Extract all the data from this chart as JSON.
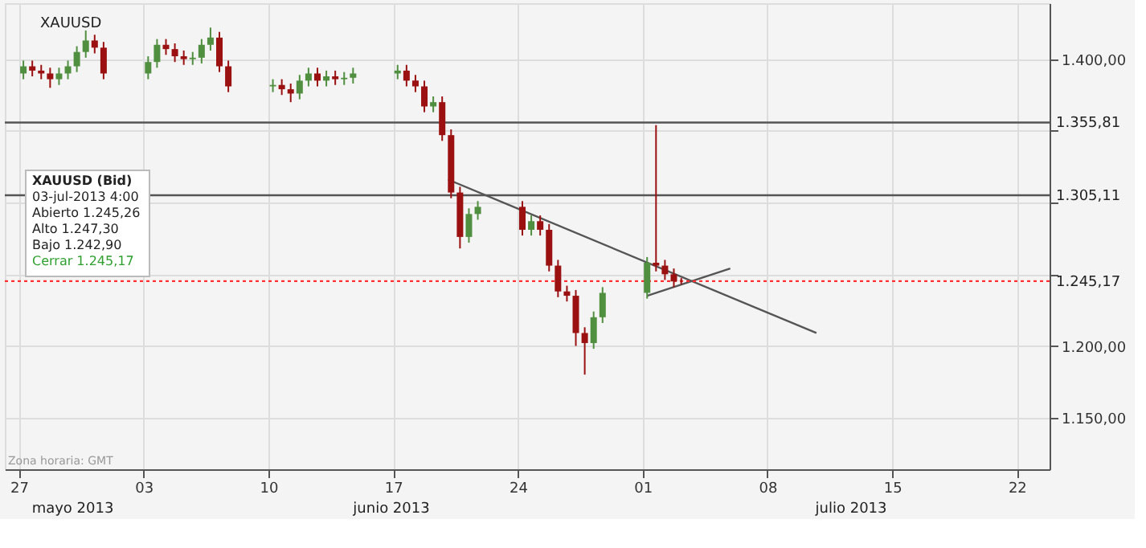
{
  "chart_data": {
    "type": "candlestick",
    "title": "XAUUSD",
    "annotations": [
      "XAUUSD (Bid)",
      "03-jul-2013 4:00",
      "Abierto 1.245,26",
      "Alto 1.247,30",
      "Bajo 1.242,90",
      "Cerrar 1.245,17",
      "Zona horaria: GMT",
      "mayo 2013",
      "junio 2013",
      "julio 2013"
    ],
    "x": [
      "2013-05-27T06:00",
      "2013-05-27T18:00",
      "2013-05-28T06:00",
      "2013-05-28T18:00",
      "2013-05-29T06:00",
      "2013-05-29T18:00",
      "2013-05-30T06:00",
      "2013-05-30T18:00",
      "2013-05-31T06:00",
      "2013-05-31T18:00",
      "2013-06-03T06:00",
      "2013-06-03T18:00",
      "2013-06-04T06:00",
      "2013-06-04T18:00",
      "2013-06-05T06:00",
      "2013-06-05T18:00",
      "2013-06-06T06:00",
      "2013-06-06T18:00",
      "2013-06-07T06:00",
      "2013-06-07T18:00",
      "2013-06-10T06:00",
      "2013-06-10T18:00",
      "2013-06-11T06:00",
      "2013-06-11T18:00",
      "2013-06-12T06:00",
      "2013-06-12T18:00",
      "2013-06-13T06:00",
      "2013-06-13T18:00",
      "2013-06-14T06:00",
      "2013-06-14T18:00",
      "2013-06-17T06:00",
      "2013-06-17T18:00",
      "2013-06-18T06:00",
      "2013-06-18T18:00",
      "2013-06-19T06:00",
      "2013-06-19T18:00",
      "2013-06-20T06:00",
      "2013-06-20T18:00",
      "2013-06-21T06:00",
      "2013-06-21T18:00",
      "2013-06-24T06:00",
      "2013-06-24T18:00",
      "2013-06-25T06:00",
      "2013-06-25T18:00",
      "2013-06-26T06:00",
      "2013-06-26T18:00",
      "2013-06-27T06:00",
      "2013-06-27T18:00",
      "2013-06-28T06:00",
      "2013-06-28T18:00",
      "2013-07-01T06:00",
      "2013-07-01T18:00",
      "2013-07-02T06:00",
      "2013-07-02T18:00",
      "2013-07-03T04:00"
    ],
    "ohlc": [
      [
        1390,
        1399,
        1386,
        1395
      ],
      [
        1395,
        1399,
        1388,
        1392
      ],
      [
        1392,
        1396,
        1386,
        1390
      ],
      [
        1390,
        1394,
        1380,
        1386
      ],
      [
        1386,
        1394,
        1382,
        1390
      ],
      [
        1390,
        1399,
        1386,
        1395
      ],
      [
        1395,
        1409,
        1391,
        1405
      ],
      [
        1405,
        1420,
        1401,
        1413
      ],
      [
        1413,
        1417,
        1404,
        1408
      ],
      [
        1408,
        1412,
        1386,
        1390
      ],
      [
        1390,
        1402,
        1386,
        1398
      ],
      [
        1398,
        1414,
        1394,
        1410
      ],
      [
        1410,
        1414,
        1403,
        1407
      ],
      [
        1407,
        1411,
        1398,
        1402
      ],
      [
        1402,
        1406,
        1396,
        1400
      ],
      [
        1400,
        1405,
        1396,
        1401
      ],
      [
        1401,
        1414,
        1397,
        1410
      ],
      [
        1410,
        1422,
        1406,
        1415
      ],
      [
        1415,
        1419,
        1391,
        1395
      ],
      [
        1395,
        1399,
        1377,
        1381
      ],
      [
        1381,
        1386,
        1377,
        1382
      ],
      [
        1382,
        1386,
        1375,
        1379
      ],
      [
        1379,
        1383,
        1370,
        1376
      ],
      [
        1376,
        1389,
        1372,
        1385
      ],
      [
        1385,
        1394,
        1381,
        1390
      ],
      [
        1390,
        1394,
        1381,
        1385
      ],
      [
        1385,
        1392,
        1381,
        1388
      ],
      [
        1388,
        1392,
        1382,
        1386
      ],
      [
        1386,
        1391,
        1382,
        1387
      ],
      [
        1387,
        1394,
        1383,
        1390
      ],
      [
        1390,
        1396,
        1386,
        1392
      ],
      [
        1392,
        1396,
        1381,
        1385
      ],
      [
        1385,
        1389,
        1377,
        1381
      ],
      [
        1381,
        1385,
        1363,
        1367
      ],
      [
        1367,
        1374,
        1363,
        1370
      ],
      [
        1370,
        1374,
        1343,
        1347
      ],
      [
        1347,
        1351,
        1303,
        1307
      ],
      [
        1307,
        1311,
        1268,
        1276
      ],
      [
        1276,
        1296,
        1272,
        1292
      ],
      [
        1292,
        1301,
        1288,
        1297
      ],
      [
        1297,
        1301,
        1277,
        1281
      ],
      [
        1281,
        1291,
        1277,
        1287
      ],
      [
        1287,
        1291,
        1277,
        1281
      ],
      [
        1281,
        1285,
        1252,
        1256
      ],
      [
        1256,
        1260,
        1234,
        1238
      ],
      [
        1238,
        1242,
        1231,
        1235
      ],
      [
        1235,
        1239,
        1200,
        1209
      ],
      [
        1209,
        1213,
        1180,
        1202
      ],
      [
        1202,
        1224,
        1198,
        1220
      ],
      [
        1220,
        1241,
        1216,
        1237
      ],
      [
        1237,
        1262,
        1233,
        1258
      ],
      [
        1258,
        1354,
        1252,
        1256
      ],
      [
        1256,
        1260,
        1246,
        1250
      ],
      [
        1250,
        1254,
        1241,
        1245
      ],
      [
        1245.26,
        1247.3,
        1242.9,
        1245.17
      ]
    ],
    "colors": [
      "#4f8f3f",
      "#9b1010",
      "#9b1010",
      "#9b1010",
      "#4f8f3f",
      "#4f8f3f",
      "#4f8f3f",
      "#4f8f3f",
      "#9b1010",
      "#9b1010",
      "#4f8f3f",
      "#4f8f3f",
      "#9b1010",
      "#9b1010",
      "#9b1010",
      "#4f8f3f",
      "#4f8f3f",
      "#4f8f3f",
      "#9b1010",
      "#9b1010",
      "#4f8f3f",
      "#9b1010",
      "#9b1010",
      "#4f8f3f",
      "#4f8f3f",
      "#9b1010",
      "#4f8f3f",
      "#9b1010",
      "#4f8f3f",
      "#4f8f3f",
      "#4f8f3f",
      "#9b1010",
      "#9b1010",
      "#9b1010",
      "#4f8f3f",
      "#9b1010",
      "#9b1010",
      "#9b1010",
      "#4f8f3f",
      "#4f8f3f",
      "#9b1010",
      "#4f8f3f",
      "#9b1010",
      "#9b1010",
      "#9b1010",
      "#9b1010",
      "#9b1010",
      "#9b1010",
      "#4f8f3f",
      "#4f8f3f",
      "#4f8f3f",
      "#9b1010",
      "#9b1010",
      "#9b1010",
      "#9b1010"
    ],
    "series": [
      {
        "type": "line",
        "x": [
          "2013-06-20T02:00",
          "2013-07-10T18:00"
        ],
        "values": [
          1316,
          1209
        ],
        "color": "#555555"
      },
      {
        "type": "line",
        "x": [
          "2013-07-01T06:00",
          "2013-07-05T22:00"
        ],
        "values": [
          1235,
          1254
        ],
        "color": "#555555"
      }
    ],
    "ref_lines": [
      {
        "axis": "y",
        "value": 1355.81,
        "label": "1.355,81",
        "color": "#555555",
        "line_style": "solid"
      },
      {
        "axis": "y",
        "value": 1305.11,
        "label": "1.305,11",
        "color": "#555555",
        "line_style": "solid"
      },
      {
        "axis": "y",
        "value": 1245.17,
        "label": "1.245,17",
        "color": "#ff3030",
        "line_style": "dotted"
      }
    ],
    "xlim": [
      "2013-05-26T05:00",
      "2013-07-23T20:00"
    ],
    "xticks": [
      {
        "value": "2013-05-27",
        "label": "27"
      },
      {
        "value": "2013-06-03",
        "label": "03"
      },
      {
        "value": "2013-06-10",
        "label": "10"
      },
      {
        "value": "2013-06-17",
        "label": "17"
      },
      {
        "value": "2013-06-24",
        "label": "24"
      },
      {
        "value": "2013-07-01",
        "label": "01"
      },
      {
        "value": "2013-07-08",
        "label": "08"
      },
      {
        "value": "2013-07-15",
        "label": "15"
      },
      {
        "value": "2013-07-22",
        "label": "22"
      }
    ],
    "ylim": [
      1114,
      1439
    ],
    "yticks": [
      {
        "value": 1150,
        "label": "1.150,00"
      },
      {
        "value": 1200,
        "label": "1.200,00"
      },
      {
        "value": 1250,
        "label": null
      },
      {
        "value": 1300,
        "label": null
      },
      {
        "value": 1350,
        "label": null
      },
      {
        "value": 1400,
        "label": "1.400,00"
      }
    ],
    "grid": true
  }
}
